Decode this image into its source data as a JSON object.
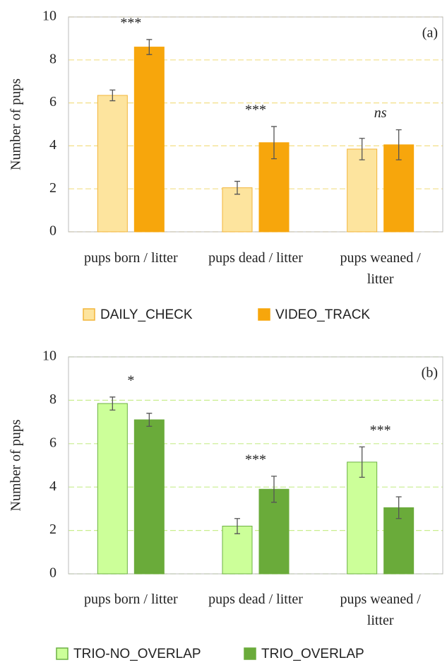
{
  "chart_data": [
    {
      "type": "bar",
      "panel_label": "(a)",
      "ylabel": "Number of pups",
      "categories": [
        "pups born / litter",
        "pups dead / litter",
        "pups weaned / litter"
      ],
      "series": [
        {
          "name": "DAILY_CHECK",
          "color": "#fde49e",
          "edge": "#f2b53a",
          "values": [
            6.35,
            2.05,
            3.85
          ],
          "errors": [
            0.25,
            0.3,
            0.5
          ]
        },
        {
          "name": "VIDEO_TRACK",
          "color": "#f7a60c",
          "edge": "#f7a60c",
          "values": [
            8.6,
            4.15,
            4.05
          ],
          "errors": [
            0.35,
            0.75,
            0.7
          ]
        }
      ],
      "annotations": [
        "***",
        "***",
        "ns"
      ],
      "ylim": [
        0,
        10
      ],
      "yticks": [
        0,
        2,
        4,
        6,
        8,
        10
      ],
      "grid": true,
      "grid_color": "#f3df86"
    },
    {
      "type": "bar",
      "panel_label": "(b)",
      "ylabel": "Number of pups",
      "categories": [
        "pups born / litter",
        "pups dead / litter",
        "pups weaned / litter"
      ],
      "series": [
        {
          "name": "TRIO-NO_OVERLAP",
          "color": "#ccff99",
          "edge": "#6cb043",
          "values": [
            7.85,
            2.2,
            5.15
          ],
          "errors": [
            0.3,
            0.35,
            0.7
          ]
        },
        {
          "name": "TRIO_OVERLAP",
          "color": "#6aab3a",
          "edge": "#6aab3a",
          "values": [
            7.1,
            3.9,
            3.05
          ],
          "errors": [
            0.3,
            0.6,
            0.5
          ]
        }
      ],
      "annotations": [
        "*",
        "***",
        "***"
      ],
      "ylim": [
        0,
        10
      ],
      "yticks": [
        0,
        2,
        4,
        6,
        8,
        10
      ],
      "grid": true,
      "grid_color": "#c9ee8e"
    }
  ]
}
